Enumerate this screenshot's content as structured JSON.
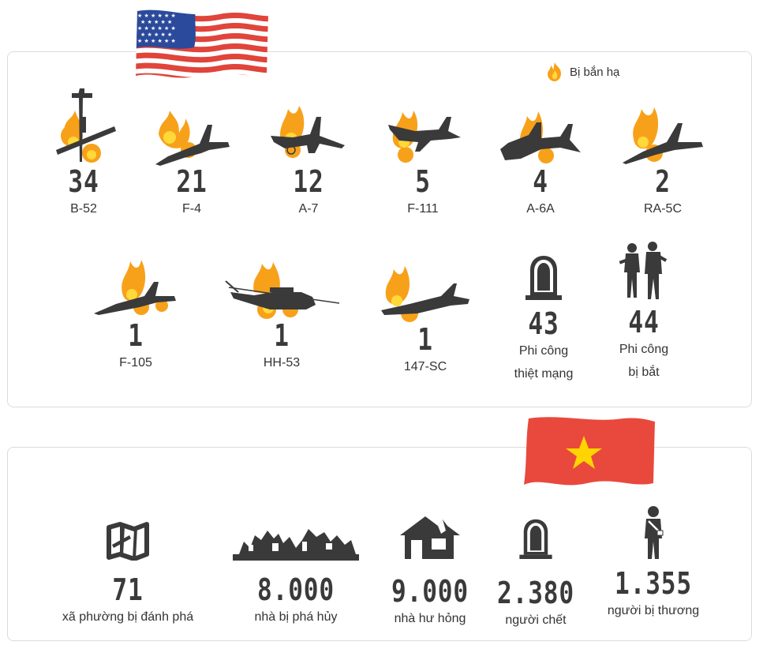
{
  "legend": {
    "label": "Bị bắn hạ",
    "icon": "flame-icon"
  },
  "colors": {
    "dark": "#3a3a3a",
    "flame": "#f7a11a",
    "flame_core": "#ffd83a",
    "vn_red": "#e8493c",
    "vn_star": "#ffd400",
    "us_red": "#e0443a",
    "us_blue": "#2b4a9b"
  },
  "aircraft": [
    {
      "id": "b52",
      "count": "34",
      "name": "B-52"
    },
    {
      "id": "f4",
      "count": "21",
      "name": "F-4"
    },
    {
      "id": "a7",
      "count": "12",
      "name": "A-7"
    },
    {
      "id": "f111",
      "count": "5",
      "name": "F-111"
    },
    {
      "id": "a6a",
      "count": "4",
      "name": "A-6A"
    },
    {
      "id": "ra5c",
      "count": "2",
      "name": "RA-5C"
    },
    {
      "id": "f105",
      "count": "1",
      "name": "F-105"
    },
    {
      "id": "hh53",
      "count": "1",
      "name": "HH-53"
    },
    {
      "id": "sc147",
      "count": "1",
      "name": "147-SC"
    }
  ],
  "pilots_killed": {
    "count": "43",
    "line1": "Phi công",
    "line2": "thiệt mạng",
    "icon": "tombstone-icon"
  },
  "pilots_captured": {
    "count": "44",
    "line1": "Phi công",
    "line2": "bị bắt",
    "icon": "soldiers-icon"
  },
  "vietnam": [
    {
      "count": "71",
      "label": "xã phường bị đánh phá",
      "icon": "map-icon"
    },
    {
      "count": "8.000",
      "label": "nhà bị phá hủy",
      "icon": "ruins-icon"
    },
    {
      "count": "9.000",
      "label": "nhà hư hỏng",
      "icon": "damaged-house-icon"
    },
    {
      "count": "2.380",
      "label": "người chết",
      "icon": "tombstone-icon"
    },
    {
      "count": "1.355",
      "label": "người bị thương",
      "icon": "injured-person-icon"
    }
  ]
}
